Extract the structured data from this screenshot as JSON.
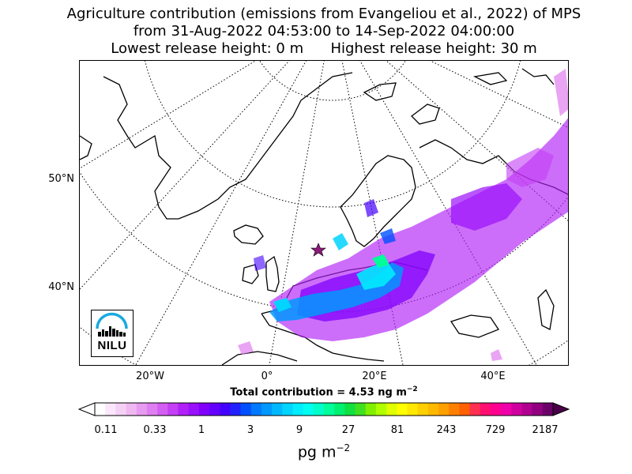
{
  "title": {
    "line1": "Agriculture contribution (emissions from Evangeliou et al., 2022) of MPS",
    "line2": "from 31-Aug-2022 04:53:00 to 14-Sep-2022 04:00:00",
    "line3": "Lowest release height: 0 m      Highest release height: 30 m"
  },
  "map": {
    "lat_labels": [
      "50°N",
      "40°N"
    ],
    "lon_labels": [
      "20°W",
      "0°",
      "20°E",
      "40°E"
    ],
    "release_marker": "star-icon"
  },
  "total": {
    "prefix": "Total contribution = 4.53 ng m",
    "exponent": "−2"
  },
  "colorbar": {
    "ticks": [
      "0.11",
      "0.33",
      "1",
      "3",
      "9",
      "27",
      "81",
      "243",
      "729",
      "2187"
    ],
    "unit_base": "pg m",
    "unit_exponent": "−2",
    "colors": [
      "#ffffff",
      "#fbe6fb",
      "#f5d0f5",
      "#efb8f0",
      "#e79bf0",
      "#df7ef0",
      "#d35ef2",
      "#c33ef5",
      "#b020f7",
      "#9a10fa",
      "#8000fc",
      "#6400fe",
      "#4400ff",
      "#2222ff",
      "#0050ff",
      "#0078ff",
      "#0098ff",
      "#00b8ff",
      "#00d4ff",
      "#00ecff",
      "#00fff0",
      "#00ffc8",
      "#00ff9a",
      "#00f070",
      "#10e040",
      "#40e020",
      "#80f000",
      "#b0ff00",
      "#e0ff00",
      "#ffff00",
      "#ffe800",
      "#ffd000",
      "#ffb800",
      "#ffa000",
      "#ff8000",
      "#ff6000",
      "#ff3050",
      "#ff1070",
      "#ff0090",
      "#f000a8",
      "#d000a0",
      "#b00090",
      "#900080",
      "#6a0068"
    ]
  },
  "logo": {
    "text": "NILU",
    "accent_color": "#19a9e0"
  }
}
